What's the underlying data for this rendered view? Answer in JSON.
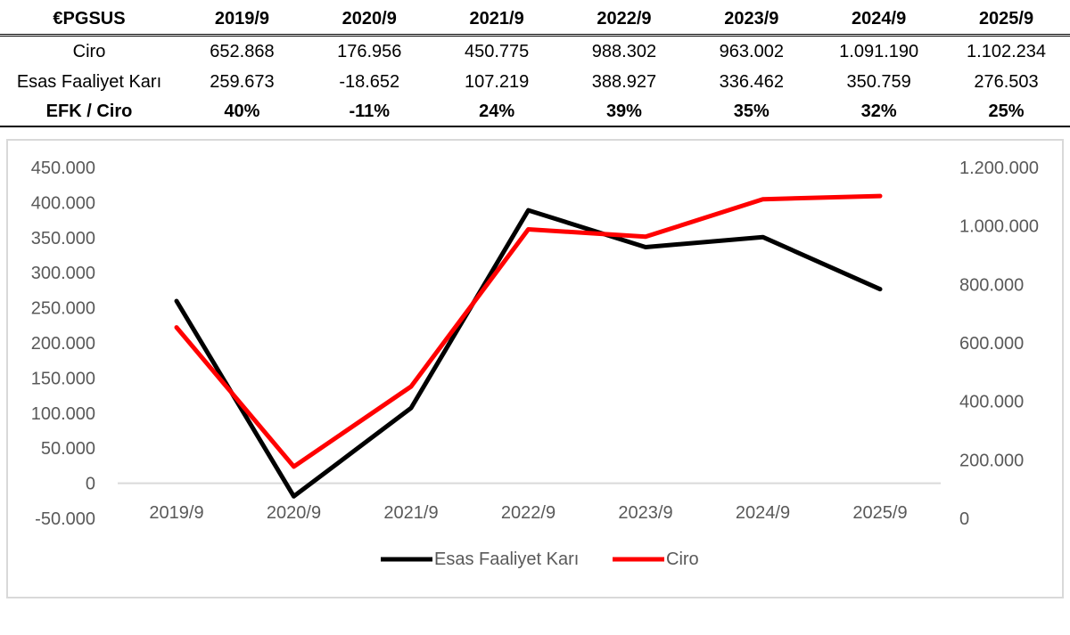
{
  "table": {
    "corner": "€PGSUS",
    "columns": [
      "2019/9",
      "2020/9",
      "2021/9",
      "2022/9",
      "2023/9",
      "2024/9",
      "2025/9"
    ],
    "rows": [
      {
        "label": "Ciro",
        "bold": false,
        "cells": [
          "652.868",
          "176.956",
          "450.775",
          "988.302",
          "963.002",
          "1.091.190",
          "1.102.234"
        ]
      },
      {
        "label": "Esas Faaliyet Karı",
        "bold": false,
        "cells": [
          "259.673",
          "-18.652",
          "107.219",
          "388.927",
          "336.462",
          "350.759",
          "276.503"
        ]
      },
      {
        "label": "EFK / Ciro",
        "bold": true,
        "cells": [
          "40%",
          "-11%",
          "24%",
          "39%",
          "35%",
          "32%",
          "25%"
        ]
      }
    ]
  },
  "chart_data": {
    "type": "line",
    "title": "",
    "categories": [
      "2019/9",
      "2020/9",
      "2021/9",
      "2022/9",
      "2023/9",
      "2024/9",
      "2025/9"
    ],
    "series": [
      {
        "name": "Esas Faaliyet Karı",
        "axis": "left",
        "color": "#000000",
        "values": [
          259673,
          -18652,
          107219,
          388927,
          336462,
          350759,
          276503
        ]
      },
      {
        "name": "Ciro",
        "axis": "right",
        "color": "#ff0000",
        "values": [
          652868,
          176956,
          450775,
          988302,
          963002,
          1091190,
          1102234
        ]
      }
    ],
    "y_left": {
      "ylim": [
        -50000,
        450000
      ],
      "ticks": [
        450000,
        400000,
        350000,
        300000,
        250000,
        200000,
        150000,
        100000,
        50000,
        0,
        -50000
      ],
      "tick_labels": [
        "450.000",
        "400.000",
        "350.000",
        "300.000",
        "250.000",
        "200.000",
        "150.000",
        "100.000",
        "50.000",
        "0",
        "-50.000"
      ]
    },
    "y_right": {
      "ylim": [
        0,
        1200000
      ],
      "ticks": [
        1200000,
        1000000,
        800000,
        600000,
        400000,
        200000,
        0
      ],
      "tick_labels": [
        "1.200.000",
        "1.000.000",
        "800.000",
        "600.000",
        "400.000",
        "200.000",
        "0"
      ]
    },
    "grid": false,
    "legend_position": "bottom"
  }
}
